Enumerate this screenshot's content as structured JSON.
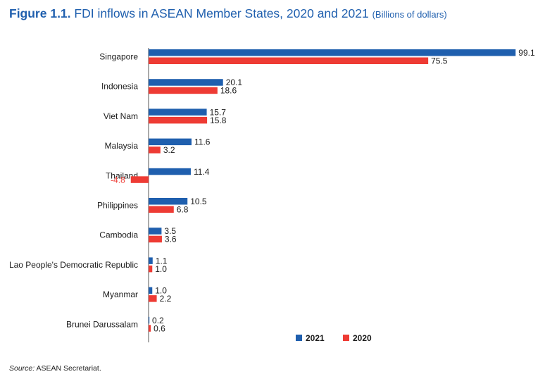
{
  "figure_label": "Figure 1.1.",
  "title": "FDI inflows in ASEAN Member States, 2020 and 2021",
  "unit": "(Billions of dollars)",
  "source_label": "Source:",
  "source_text": "ASEAN Secretariat.",
  "colors": {
    "series_2021": "#1f5fae",
    "series_2020": "#ee3b34",
    "axis": "#555555",
    "title": "#1f5fae"
  },
  "chart_data": {
    "type": "bar",
    "orientation": "horizontal",
    "categories": [
      "Singapore",
      "Indonesia",
      "Viet Nam",
      "Malaysia",
      "Thailand",
      "Philippines",
      "Cambodia",
      "Lao People's Democratic Republic",
      "Myanmar",
      "Brunei Darussalam"
    ],
    "series": [
      {
        "name": "2021",
        "values": [
          99.1,
          20.1,
          15.7,
          11.6,
          11.4,
          10.5,
          3.5,
          1.1,
          1.0,
          0.2
        ]
      },
      {
        "name": "2020",
        "values": [
          75.5,
          18.6,
          15.8,
          3.2,
          -4.8,
          6.8,
          3.6,
          1.0,
          2.2,
          0.6
        ]
      }
    ],
    "legend_position": "bottom-right",
    "grid": false
  }
}
